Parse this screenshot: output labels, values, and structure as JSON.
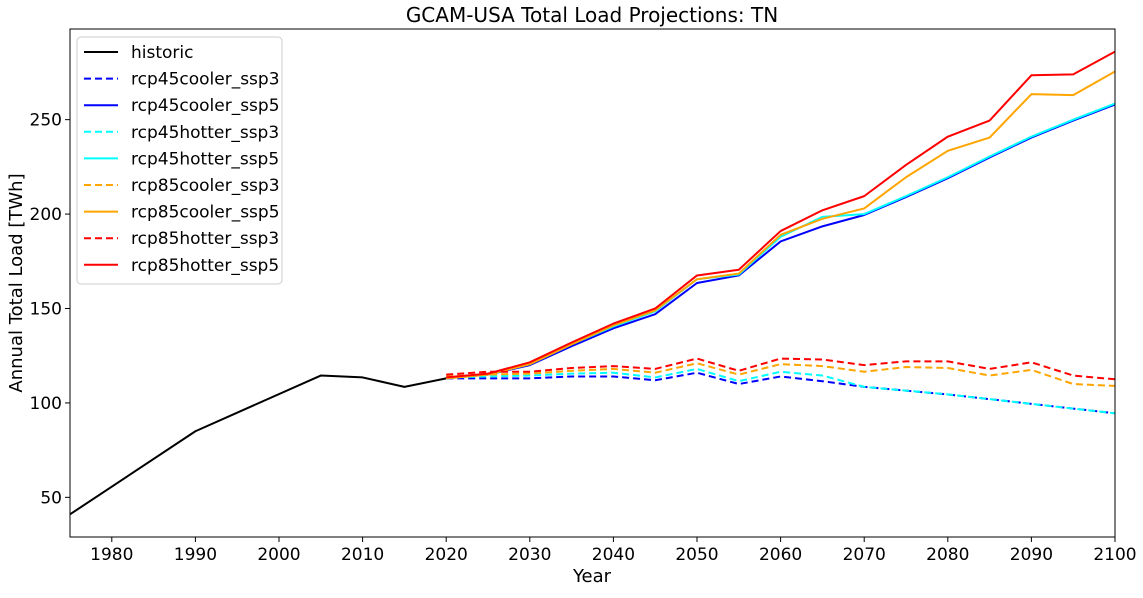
{
  "chart_data": {
    "type": "line",
    "title": "GCAM-USA Total Load Projections: TN",
    "xlabel": "Year",
    "ylabel": "Annual Total Load [TWh]",
    "xlim": [
      1975,
      2100
    ],
    "ylim": [
      29,
      298
    ],
    "xticks": [
      1980,
      1990,
      2000,
      2010,
      2020,
      2030,
      2040,
      2050,
      2060,
      2070,
      2080,
      2090,
      2100
    ],
    "yticks": [
      50,
      100,
      150,
      200,
      250
    ],
    "grid": false,
    "legend_position": "upper left",
    "series": [
      {
        "name": "historic",
        "color": "#000000",
        "dash": "solid",
        "x": [
          1975,
          1990,
          2005,
          2010,
          2015,
          2020
        ],
        "y": [
          41,
          85,
          114.5,
          113.5,
          108.5,
          113
        ]
      },
      {
        "name": "rcp45cooler_ssp3",
        "color": "#0000ff",
        "dash": "dashed",
        "x": [
          2020,
          2025,
          2030,
          2035,
          2040,
          2045,
          2050,
          2055,
          2060,
          2065,
          2070,
          2075,
          2080,
          2085,
          2090,
          2095,
          2100
        ],
        "y": [
          113,
          113,
          113,
          114,
          114,
          112,
          116,
          110,
          114,
          111.5,
          108.5,
          106.5,
          104.5,
          102,
          99.5,
          97,
          94.5
        ]
      },
      {
        "name": "rcp45cooler_ssp5",
        "color": "#0000ff",
        "dash": "solid",
        "x": [
          2020,
          2025,
          2030,
          2035,
          2040,
          2045,
          2050,
          2055,
          2060,
          2065,
          2070,
          2075,
          2080,
          2085,
          2090,
          2095,
          2100
        ],
        "y": [
          113,
          115,
          120,
          130,
          139.5,
          147,
          163.5,
          167.5,
          185.5,
          193.5,
          199.5,
          209,
          219,
          230,
          240.5,
          249.5,
          258
        ]
      },
      {
        "name": "rcp45hotter_ssp3",
        "color": "#00ffff",
        "dash": "dashed",
        "x": [
          2020,
          2025,
          2030,
          2035,
          2040,
          2045,
          2050,
          2055,
          2060,
          2065,
          2070,
          2075,
          2080,
          2085,
          2090,
          2095,
          2100
        ],
        "y": [
          113.5,
          114,
          114.5,
          115.5,
          116,
          113.5,
          118,
          111.5,
          116.5,
          114.5,
          108.5,
          106.5,
          104.5,
          102,
          99.5,
          97,
          94.5
        ]
      },
      {
        "name": "rcp45hotter_ssp5",
        "color": "#00ffff",
        "dash": "solid",
        "x": [
          2020,
          2025,
          2030,
          2035,
          2040,
          2045,
          2050,
          2055,
          2060,
          2065,
          2070,
          2075,
          2080,
          2085,
          2090,
          2095,
          2100
        ],
        "y": [
          113,
          115,
          120.5,
          131,
          140.5,
          148.5,
          165.5,
          168,
          188,
          198.5,
          200,
          209.5,
          219.5,
          230.5,
          241,
          250,
          258.5
        ]
      },
      {
        "name": "rcp85cooler_ssp3",
        "color": "#ffa500",
        "dash": "dashed",
        "x": [
          2020,
          2025,
          2030,
          2035,
          2040,
          2045,
          2050,
          2055,
          2060,
          2065,
          2070,
          2075,
          2080,
          2085,
          2090,
          2095,
          2100
        ],
        "y": [
          114,
          115,
          115.5,
          117,
          118,
          116,
          121,
          115,
          120.5,
          119.5,
          116.5,
          119,
          118.5,
          114.5,
          117.5,
          110,
          109
        ]
      },
      {
        "name": "rcp85cooler_ssp5",
        "color": "#ffa500",
        "dash": "solid",
        "x": [
          2020,
          2025,
          2030,
          2035,
          2040,
          2045,
          2050,
          2055,
          2060,
          2065,
          2070,
          2075,
          2080,
          2085,
          2090,
          2095,
          2100
        ],
        "y": [
          113,
          115,
          120.5,
          131,
          141,
          149,
          165.5,
          168.5,
          189,
          197.5,
          203,
          219.5,
          233.5,
          240.5,
          263.5,
          263,
          275.5
        ]
      },
      {
        "name": "rcp85hotter_ssp3",
        "color": "#ff0000",
        "dash": "dashed",
        "x": [
          2020,
          2025,
          2030,
          2035,
          2040,
          2045,
          2050,
          2055,
          2060,
          2065,
          2070,
          2075,
          2080,
          2085,
          2090,
          2095,
          2100
        ],
        "y": [
          115,
          116.5,
          116.5,
          118.5,
          119.5,
          118,
          123.5,
          117,
          123.5,
          123,
          120,
          122,
          122,
          118,
          121.5,
          114.5,
          112.5
        ]
      },
      {
        "name": "rcp85hotter_ssp5",
        "color": "#ff0000",
        "dash": "solid",
        "x": [
          2020,
          2025,
          2030,
          2035,
          2040,
          2045,
          2050,
          2055,
          2060,
          2065,
          2070,
          2075,
          2080,
          2085,
          2090,
          2095,
          2100
        ],
        "y": [
          113.5,
          115.5,
          121.5,
          132,
          142,
          150,
          167.5,
          170.5,
          191,
          202,
          209.5,
          226,
          241,
          249.5,
          273.5,
          274,
          286
        ]
      }
    ]
  }
}
